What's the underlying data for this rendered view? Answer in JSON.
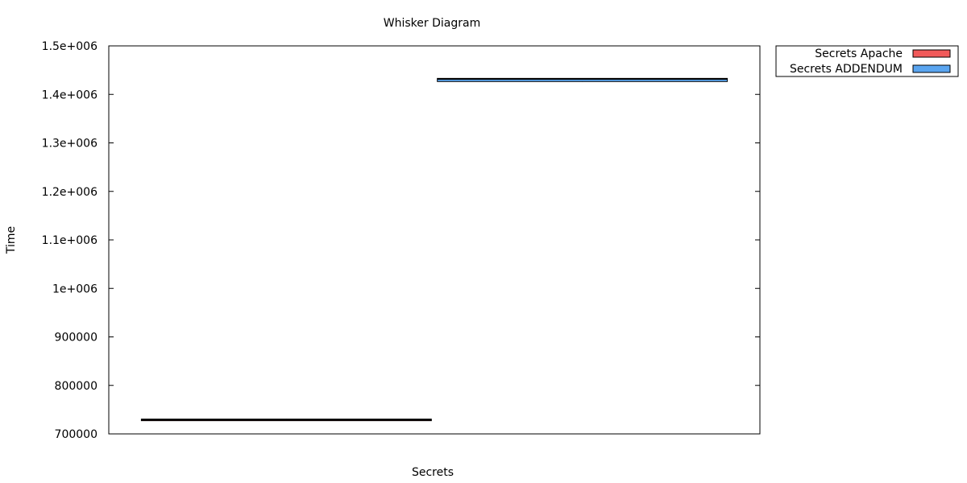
{
  "chart_data": {
    "type": "box",
    "title": "Whisker Diagram",
    "xlabel": "Secrets",
    "ylabel": "Time",
    "ylim": [
      700000,
      1500000
    ],
    "y_ticks": [
      {
        "value": 700000,
        "label": "700000"
      },
      {
        "value": 800000,
        "label": "800000"
      },
      {
        "value": 900000,
        "label": "900000"
      },
      {
        "value": 1000000,
        "label": "1e+006"
      },
      {
        "value": 1100000,
        "label": "1.1e+006"
      },
      {
        "value": 1200000,
        "label": "1.2e+006"
      },
      {
        "value": 1300000,
        "label": "1.3e+006"
      },
      {
        "value": 1400000,
        "label": "1.4e+006"
      },
      {
        "value": 1500000,
        "label": "1.5e+006"
      }
    ],
    "xlim": [
      0.4,
      2.6
    ],
    "grid": false,
    "legend_position": "outside-top-right",
    "series": [
      {
        "name": "Secrets Apache",
        "color": "#f15a5a",
        "x": 1,
        "q1": 728500,
        "median": 729500,
        "q3": 730500,
        "min": 728000,
        "max": 731000
      },
      {
        "name": "Secrets ADDENDUM",
        "color": "#5aa5f0",
        "x": 2,
        "q1": 1426500,
        "median": 1432000,
        "q3": 1433000,
        "min": 1426000,
        "max": 1433500
      }
    ]
  }
}
